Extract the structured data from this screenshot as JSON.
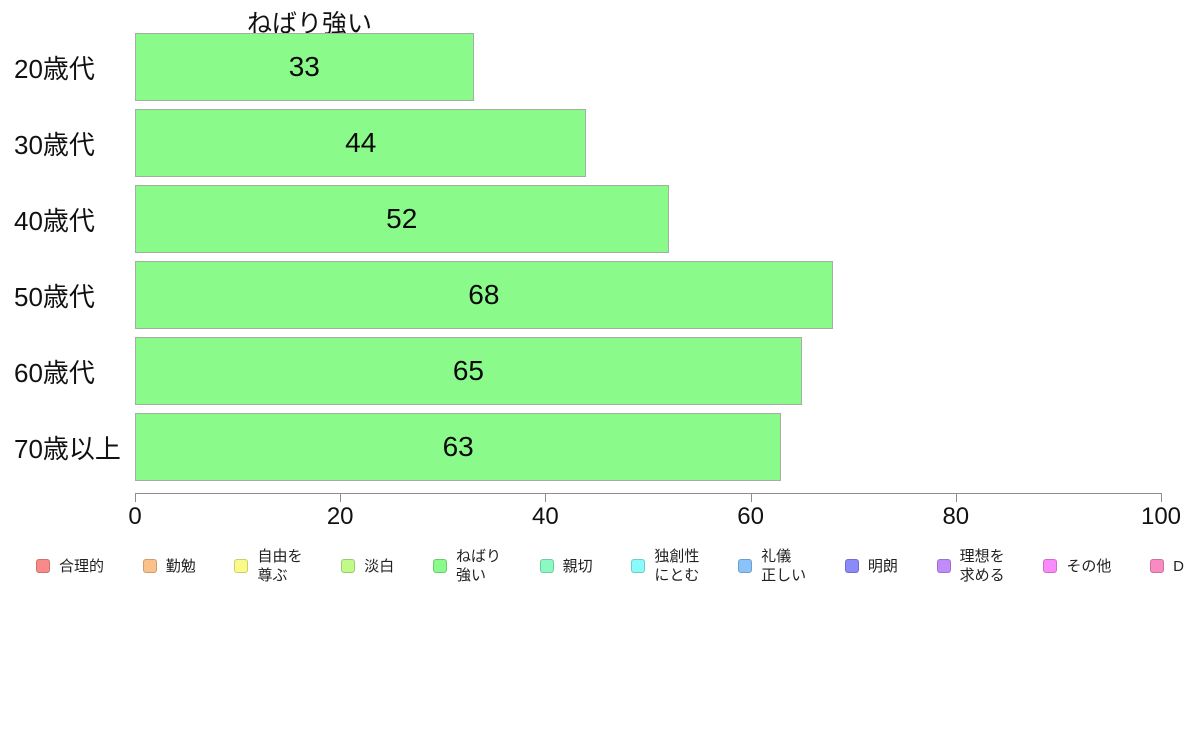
{
  "chart_data": {
    "type": "bar",
    "orientation": "horizontal",
    "title": "ねばり強い",
    "series_name": "ねばり強い",
    "categories": [
      "20歳代",
      "30歳代",
      "40歳代",
      "50歳代",
      "60歳代",
      "70歳以上"
    ],
    "values": [
      33,
      44,
      52,
      68,
      65,
      63
    ],
    "value_labels": [
      "33",
      "44",
      "52",
      "68",
      "65",
      "63"
    ],
    "xlabel": "",
    "ylabel": "",
    "xlim": [
      0,
      100
    ],
    "x_ticks": [
      0,
      20,
      40,
      60,
      80,
      100
    ],
    "grid": false,
    "legend_position": "bottom",
    "colors": {
      "bar_fill": "#8afa8a",
      "bar_border": "#a2b0a2",
      "axis": "#8c8c8c",
      "text": "#111111"
    },
    "legend": [
      {
        "label": "合理的",
        "fill": "#fa8a8a",
        "border": "#cc7070"
      },
      {
        "label": "勤勉",
        "fill": "#fac28a",
        "border": "#cc9d70"
      },
      {
        "label": "自由を\n尊ぶ",
        "fill": "#fafa8a",
        "border": "#cccc70"
      },
      {
        "label": "淡白",
        "fill": "#c2fa8a",
        "border": "#9dcc70"
      },
      {
        "label": "ねばり\n強い",
        "fill": "#8afa8a",
        "border": "#70cc70"
      },
      {
        "label": "親切",
        "fill": "#8afac2",
        "border": "#70cc9d"
      },
      {
        "label": "独創性\nにとむ",
        "fill": "#8afafa",
        "border": "#70cccc"
      },
      {
        "label": "礼儀\n正しい",
        "fill": "#8ac2fa",
        "border": "#709dcc"
      },
      {
        "label": "明朗",
        "fill": "#8a8afa",
        "border": "#7070cc"
      },
      {
        "label": "理想を\n求める",
        "fill": "#c28afa",
        "border": "#9d70cc"
      },
      {
        "label": "その他",
        "fill": "#fa8afa",
        "border": "#cc70cc"
      },
      {
        "label": "D",
        "fill": "#fa8ac2",
        "border": "#cc709d"
      }
    ]
  }
}
